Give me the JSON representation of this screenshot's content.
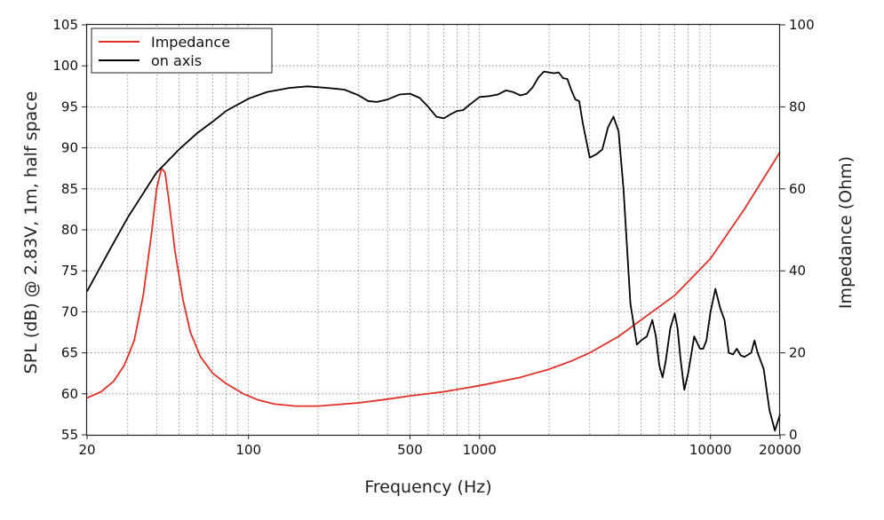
{
  "chart_data": {
    "type": "line",
    "xscale": "log",
    "xlabel": "Frequency (Hz)",
    "ylabel": "SPL (dB) @ 2.83V, 1m, half space",
    "y2label": "Impedance (Ohm)",
    "xlim": [
      20,
      20000
    ],
    "ylim": [
      55,
      105
    ],
    "y2lim": [
      0,
      100
    ],
    "grid": true,
    "xticks": [
      {
        "value": 20,
        "label": "20"
      },
      {
        "value": 100,
        "label": "100"
      },
      {
        "value": 500,
        "label": "500"
      },
      {
        "value": 1000,
        "label": "1000"
      },
      {
        "value": 10000,
        "label": "10000"
      },
      {
        "value": 20000,
        "label": "20000"
      }
    ],
    "yticks": [
      55,
      60,
      65,
      70,
      75,
      80,
      85,
      90,
      95,
      100,
      105
    ],
    "y2ticks": [
      0,
      20,
      40,
      60,
      80,
      100
    ],
    "legend": {
      "position": "top-left",
      "entries": [
        {
          "name": "Impedance",
          "color": "#e03127"
        },
        {
          "name": "on axis",
          "color": "#000000"
        }
      ]
    },
    "series": [
      {
        "name": "Impedance",
        "axis": "right",
        "color": "#e03127",
        "points": [
          [
            20,
            9
          ],
          [
            23,
            10.5
          ],
          [
            26,
            13
          ],
          [
            29,
            17
          ],
          [
            32,
            23
          ],
          [
            35,
            34
          ],
          [
            38,
            49
          ],
          [
            40,
            60
          ],
          [
            42,
            65
          ],
          [
            43.5,
            64
          ],
          [
            45,
            58
          ],
          [
            48,
            45
          ],
          [
            52,
            33
          ],
          [
            56,
            25
          ],
          [
            62,
            19
          ],
          [
            70,
            15
          ],
          [
            80,
            12.5
          ],
          [
            95,
            10
          ],
          [
            110,
            8.5
          ],
          [
            130,
            7.5
          ],
          [
            160,
            7
          ],
          [
            200,
            7
          ],
          [
            300,
            7.8
          ],
          [
            400,
            8.7
          ],
          [
            500,
            9.5
          ],
          [
            700,
            10.5
          ],
          [
            1000,
            12
          ],
          [
            1500,
            14
          ],
          [
            2000,
            16
          ],
          [
            2500,
            18
          ],
          [
            3000,
            20
          ],
          [
            4000,
            24
          ],
          [
            5000,
            28
          ],
          [
            7000,
            34
          ],
          [
            10000,
            43
          ],
          [
            14000,
            55
          ],
          [
            20000,
            69
          ]
        ]
      },
      {
        "name": "on axis",
        "axis": "left",
        "color": "#000000",
        "points": [
          [
            20,
            72.5
          ],
          [
            25,
            77.5
          ],
          [
            30,
            81.5
          ],
          [
            40,
            87
          ],
          [
            50,
            89.8
          ],
          [
            60,
            91.8
          ],
          [
            70,
            93.2
          ],
          [
            80,
            94.5
          ],
          [
            100,
            96
          ],
          [
            120,
            96.8
          ],
          [
            150,
            97.3
          ],
          [
            180,
            97.5
          ],
          [
            220,
            97.3
          ],
          [
            260,
            97.1
          ],
          [
            300,
            96.4
          ],
          [
            330,
            95.7
          ],
          [
            360,
            95.6
          ],
          [
            400,
            95.9
          ],
          [
            450,
            96.5
          ],
          [
            500,
            96.6
          ],
          [
            550,
            96.1
          ],
          [
            600,
            95
          ],
          [
            650,
            93.8
          ],
          [
            700,
            93.6
          ],
          [
            750,
            94.1
          ],
          [
            800,
            94.5
          ],
          [
            850,
            94.6
          ],
          [
            900,
            95.2
          ],
          [
            1000,
            96.2
          ],
          [
            1100,
            96.3
          ],
          [
            1200,
            96.5
          ],
          [
            1300,
            97
          ],
          [
            1400,
            96.8
          ],
          [
            1500,
            96.4
          ],
          [
            1600,
            96.6
          ],
          [
            1700,
            97.4
          ],
          [
            1800,
            98.6
          ],
          [
            1900,
            99.3
          ],
          [
            2000,
            99.2
          ],
          [
            2100,
            99.1
          ],
          [
            2200,
            99.2
          ],
          [
            2300,
            98.5
          ],
          [
            2400,
            98.4
          ],
          [
            2500,
            97
          ],
          [
            2600,
            95.9
          ],
          [
            2700,
            95.7
          ],
          [
            2800,
            93
          ],
          [
            3000,
            88.8
          ],
          [
            3200,
            89.2
          ],
          [
            3400,
            89.8
          ],
          [
            3600,
            92.5
          ],
          [
            3800,
            93.8
          ],
          [
            4000,
            92
          ],
          [
            4200,
            85
          ],
          [
            4500,
            71
          ],
          [
            4800,
            66
          ],
          [
            5000,
            66.5
          ],
          [
            5300,
            67
          ],
          [
            5600,
            69
          ],
          [
            5800,
            67
          ],
          [
            6000,
            63.5
          ],
          [
            6200,
            62
          ],
          [
            6400,
            64
          ],
          [
            6700,
            68
          ],
          [
            7000,
            69.8
          ],
          [
            7200,
            68
          ],
          [
            7400,
            64.5
          ],
          [
            7700,
            60.5
          ],
          [
            8000,
            62.5
          ],
          [
            8500,
            67
          ],
          [
            9000,
            65.5
          ],
          [
            9300,
            65.5
          ],
          [
            9600,
            66.5
          ],
          [
            10000,
            70
          ],
          [
            10500,
            72.8
          ],
          [
            11000,
            70.5
          ],
          [
            11500,
            69
          ],
          [
            12000,
            65
          ],
          [
            12500,
            64.8
          ],
          [
            13000,
            65.5
          ],
          [
            13500,
            64.7
          ],
          [
            14000,
            64.5
          ],
          [
            15000,
            65
          ],
          [
            15500,
            66.5
          ],
          [
            16000,
            65
          ],
          [
            17000,
            63
          ],
          [
            18000,
            58
          ],
          [
            19000,
            55.5
          ],
          [
            20000,
            57.5
          ]
        ]
      }
    ]
  }
}
